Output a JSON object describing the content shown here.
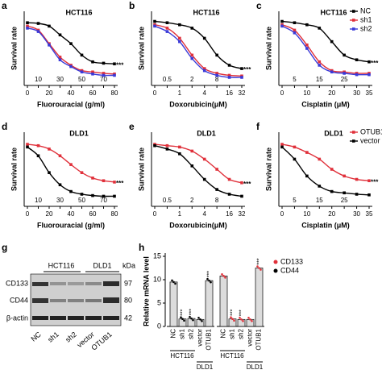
{
  "chart_data": [
    {
      "type": "line",
      "panel": "a",
      "title": "HCT116",
      "x_label": "Fluorouracial (g/ml)",
      "y_label": "Survival rate",
      "annotation": "***",
      "categories": [
        "0",
        "10",
        "20",
        "30",
        "40",
        "50",
        "60",
        "70",
        "80"
      ],
      "ylim": [
        0,
        1.1
      ],
      "series": [
        {
          "name": "NC",
          "color": "#000000",
          "values": [
            0.93,
            0.92,
            0.88,
            0.75,
            0.62,
            0.45,
            0.35,
            0.33,
            0.32
          ]
        },
        {
          "name": "sh1",
          "color": "#e0303a",
          "values": [
            0.88,
            0.82,
            0.62,
            0.42,
            0.3,
            0.22,
            0.2,
            0.18,
            0.17
          ]
        },
        {
          "name": "sh2",
          "color": "#3a3ad8",
          "values": [
            0.85,
            0.8,
            0.6,
            0.38,
            0.28,
            0.2,
            0.17,
            0.15,
            0.15
          ]
        }
      ]
    },
    {
      "type": "line",
      "panel": "b",
      "title": "HCT116",
      "x_label": "Doxorubicin(μM)",
      "y_label": "Survival rate",
      "annotation": "***",
      "categories": [
        "0",
        "0.5",
        "1",
        "2",
        "4",
        "8",
        "16",
        "32"
      ],
      "ylim": [
        0,
        1.1
      ],
      "series": [
        {
          "name": "NC",
          "color": "#000000",
          "values": [
            0.95,
            0.93,
            0.9,
            0.85,
            0.7,
            0.45,
            0.3,
            0.25
          ]
        },
        {
          "name": "sh1",
          "color": "#e0303a",
          "values": [
            0.9,
            0.85,
            0.7,
            0.45,
            0.25,
            0.18,
            0.15,
            0.14
          ]
        },
        {
          "name": "sh2",
          "color": "#3a3ad8",
          "values": [
            0.88,
            0.8,
            0.65,
            0.4,
            0.22,
            0.15,
            0.12,
            0.12
          ]
        }
      ]
    },
    {
      "type": "line",
      "panel": "c",
      "title": "HCT116",
      "x_label": "Cisplatin (μM)",
      "y_label": "Survival rate",
      "annotation": "***",
      "legend": true,
      "categories": [
        "0",
        "5",
        "10",
        "15",
        "20",
        "25",
        "30",
        "35"
      ],
      "ylim": [
        0,
        1.1
      ],
      "series": [
        {
          "name": "NC",
          "color": "#000000",
          "values": [
            0.95,
            0.93,
            0.9,
            0.85,
            0.65,
            0.45,
            0.38,
            0.35
          ]
        },
        {
          "name": "sh1",
          "color": "#e0303a",
          "values": [
            0.9,
            0.82,
            0.6,
            0.35,
            0.22,
            0.2,
            0.18,
            0.18
          ]
        },
        {
          "name": "sh2",
          "color": "#3a3ad8",
          "values": [
            0.88,
            0.78,
            0.55,
            0.3,
            0.2,
            0.18,
            0.16,
            0.16
          ]
        }
      ]
    },
    {
      "type": "line",
      "panel": "d",
      "title": "DLD1",
      "x_label": "Fluorouracial (g/ml)",
      "y_label": "Survival rate",
      "annotation": "***",
      "categories": [
        "0",
        "10",
        "20",
        "30",
        "40",
        "50",
        "60",
        "70",
        "80"
      ],
      "ylim": [
        0,
        1.1
      ],
      "series": [
        {
          "name": "OTUB1",
          "color": "#e0303a",
          "values": [
            0.92,
            0.9,
            0.85,
            0.75,
            0.62,
            0.5,
            0.42,
            0.38,
            0.36
          ]
        },
        {
          "name": "vector",
          "color": "#000000",
          "values": [
            0.88,
            0.75,
            0.5,
            0.32,
            0.22,
            0.18,
            0.16,
            0.15,
            0.15
          ]
        }
      ]
    },
    {
      "type": "line",
      "panel": "e",
      "title": "DLD1",
      "x_label": "Doxorubicin(μM)",
      "y_label": "Survival rate",
      "annotation": "***",
      "categories": [
        "0",
        "0.5",
        "1",
        "2",
        "4",
        "8",
        "16",
        "32"
      ],
      "ylim": [
        0,
        1.1
      ],
      "series": [
        {
          "name": "OTUB1",
          "color": "#e0303a",
          "values": [
            0.92,
            0.9,
            0.88,
            0.82,
            0.7,
            0.55,
            0.4,
            0.35
          ]
        },
        {
          "name": "vector",
          "color": "#000000",
          "values": [
            0.9,
            0.85,
            0.78,
            0.6,
            0.4,
            0.25,
            0.18,
            0.15
          ]
        }
      ]
    },
    {
      "type": "line",
      "panel": "f",
      "title": "DLD1",
      "x_label": "Cisplatin (μM)",
      "y_label": "Survival rate",
      "annotation": "***",
      "legend": true,
      "categories": [
        "0",
        "5",
        "10",
        "15",
        "20",
        "25",
        "30",
        "35"
      ],
      "ylim": [
        0,
        1.1
      ],
      "series": [
        {
          "name": "OTUB1",
          "color": "#e0303a",
          "values": [
            0.92,
            0.88,
            0.8,
            0.7,
            0.55,
            0.45,
            0.4,
            0.38
          ]
        },
        {
          "name": "vector",
          "color": "#000000",
          "values": [
            0.88,
            0.7,
            0.45,
            0.3,
            0.22,
            0.2,
            0.18,
            0.17
          ]
        }
      ]
    },
    {
      "type": "bar",
      "panel": "h",
      "y_label": "Relative mRNA level",
      "ylim": [
        0,
        15
      ],
      "yticks": [
        0,
        5,
        10,
        15
      ],
      "categories": [
        "NC",
        "sh1",
        "sh2",
        "vector",
        "OTUB1"
      ],
      "groups": [
        "HCT116",
        "DLD1"
      ],
      "series": [
        {
          "name": "CD44",
          "color": "#000000",
          "values": [
            9.5,
            1.6,
            1.7,
            1.5,
            9.8
          ],
          "annotations": [
            null,
            "***",
            "***",
            null,
            "***"
          ]
        },
        {
          "name": "CD133",
          "color": "#e0303a",
          "values": [
            10.8,
            1.6,
            1.5,
            1.5,
            12.5
          ],
          "annotations": [
            null,
            "***",
            "***",
            null,
            "***"
          ]
        }
      ]
    }
  ],
  "blot": {
    "panel": "g",
    "cell_lines": [
      "HCT116",
      "DLD1"
    ],
    "unit": "kDa",
    "rows": [
      {
        "name": "CD133",
        "kda": "97"
      },
      {
        "name": "CD44",
        "kda": "80"
      },
      {
        "name": "β-actin",
        "kda": "42"
      }
    ],
    "lanes": [
      "NC",
      "sh1",
      "sh2",
      "vector",
      "OTUB1"
    ]
  }
}
